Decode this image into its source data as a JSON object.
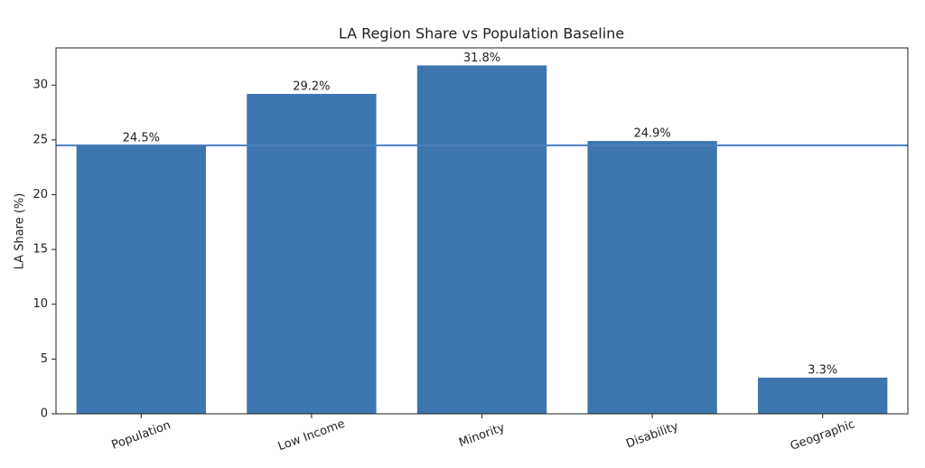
{
  "chart_data": {
    "type": "bar",
    "title": "LA Region Share vs Population Baseline",
    "ylabel": "LA Share (%)",
    "categories": [
      "Population",
      "Low Income",
      "Minority",
      "Disability",
      "Geographic"
    ],
    "values": [
      24.5,
      29.2,
      31.8,
      24.9,
      3.3
    ],
    "value_labels": [
      "24.5%",
      "29.2%",
      "31.8%",
      "24.9%",
      "3.3%"
    ],
    "color": "#3d76ae",
    "baseline": 24.5,
    "baseline_color": "#4a7fbf",
    "ylim": [
      0,
      33.4
    ],
    "yticks": [
      0,
      5,
      10,
      15,
      20,
      25,
      30
    ]
  }
}
